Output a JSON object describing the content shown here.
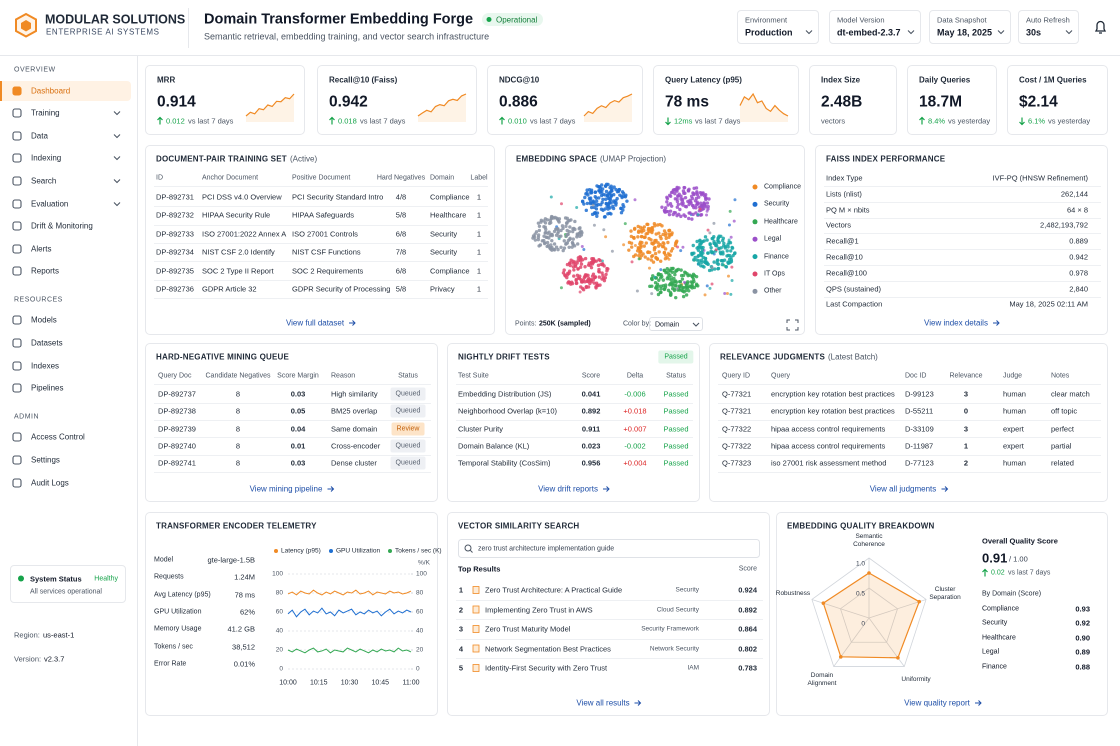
{
  "brand": {
    "name": "MODULAR SOLUTIONS",
    "tagline": "ENTERPRISE AI SYSTEMS"
  },
  "header": {
    "title": "Domain Transformer Embedding Forge",
    "status": "Operational",
    "subtitle": "Semantic retrieval, embedding training, and vector search infrastructure",
    "filters": [
      {
        "label": "Environment",
        "value": "Production"
      },
      {
        "label": "Model Version",
        "value": "dt-embed-2.3.7"
      },
      {
        "label": "Data Snapshot",
        "value": "May 18, 2025"
      },
      {
        "label": "Auto Refresh",
        "value": "30s"
      }
    ]
  },
  "sidebar": {
    "sections": [
      {
        "title": "OVERVIEW",
        "items": [
          {
            "label": "Dashboard",
            "active": true
          },
          {
            "label": "Training",
            "expandable": true
          },
          {
            "label": "Data",
            "expandable": true
          },
          {
            "label": "Indexing",
            "expandable": true
          },
          {
            "label": "Search",
            "expandable": true
          },
          {
            "label": "Evaluation",
            "expandable": true
          },
          {
            "label": "Drift & Monitoring"
          },
          {
            "label": "Alerts"
          },
          {
            "label": "Reports"
          }
        ]
      },
      {
        "title": "RESOURCES",
        "items": [
          {
            "label": "Models"
          },
          {
            "label": "Datasets"
          },
          {
            "label": "Indexes"
          },
          {
            "label": "Pipelines"
          }
        ]
      },
      {
        "title": "ADMIN",
        "items": [
          {
            "label": "Access Control"
          },
          {
            "label": "Settings"
          },
          {
            "label": "Audit Logs"
          }
        ]
      }
    ],
    "status": {
      "title": "System Status",
      "state": "Healthy",
      "message": "All services operational"
    },
    "region": {
      "label": "Region:",
      "value": "us-east-1"
    },
    "version": {
      "label": "Version:",
      "value": "v2.3.7"
    }
  },
  "kpis": [
    {
      "label": "MRR",
      "value": "0.914",
      "direction": "up",
      "delta": "0.012",
      "note": "vs last 7 days",
      "trend": [
        3,
        4,
        3.6,
        5,
        4.7,
        6,
        5.6,
        7,
        6.9,
        8,
        7.7,
        9
      ]
    },
    {
      "label": "Recall@10 (Faiss)",
      "value": "0.942",
      "direction": "up",
      "delta": "0.018",
      "note": "vs last 7 days",
      "trend": [
        3,
        3.8,
        4.5,
        4.1,
        5.5,
        6,
        5.7,
        7,
        7.4,
        7.1,
        8.3,
        8.8
      ]
    },
    {
      "label": "NDCG@10",
      "value": "0.886",
      "direction": "up",
      "delta": "0.010",
      "note": "vs last 7 days",
      "trend": [
        3,
        4.2,
        3.7,
        5.1,
        5.8,
        5.3,
        6.6,
        7.2,
        6.8,
        8,
        8.4,
        9
      ]
    },
    {
      "label": "Query Latency (p95)",
      "value": "78 ms",
      "direction": "down",
      "delta": "12ms",
      "note": "vs last 7 days",
      "trend": [
        6,
        7.5,
        7,
        8,
        6.5,
        6.8,
        5.5,
        5,
        6,
        5.2,
        4.6,
        4.2
      ]
    },
    {
      "label": "Index Size",
      "value": "2.48B",
      "note": "vectors"
    },
    {
      "label": "Daily Queries",
      "value": "18.7M",
      "direction": "up",
      "delta": "8.4%",
      "note": "vs yesterday"
    },
    {
      "label": "Cost / 1M Queries",
      "value": "$2.14",
      "direction": "down",
      "delta": "6.1%",
      "note": "vs yesterday"
    }
  ],
  "training_set": {
    "title": "DOCUMENT-PAIR TRAINING SET",
    "qualifier": "(Active)",
    "columns": [
      "ID",
      "Anchor Document",
      "Positive Document",
      "Hard Negatives",
      "Domain",
      "Label"
    ],
    "rows": [
      [
        "DP-892731",
        "PCI DSS v4.0 Overview",
        "PCI Security Standard Intro",
        "4/8",
        "Compliance",
        "1"
      ],
      [
        "DP-892732",
        "HIPAA Security Rule",
        "HIPAA Safeguards",
        "5/8",
        "Healthcare",
        "1"
      ],
      [
        "DP-892733",
        "ISO 27001:2022 Annex A",
        "ISO 27001 Controls",
        "6/8",
        "Security",
        "1"
      ],
      [
        "DP-892734",
        "NIST CSF 2.0 Identify",
        "NIST CSF Functions",
        "7/8",
        "Security",
        "1"
      ],
      [
        "DP-892735",
        "SOC 2 Type II Report",
        "SOC 2 Requirements",
        "6/8",
        "Compliance",
        "1"
      ],
      [
        "DP-892736",
        "GDPR Article 32",
        "GDPR Security of Processing",
        "5/8",
        "Privacy",
        "1"
      ]
    ],
    "link": "View full dataset"
  },
  "embedding_space": {
    "title": "EMBEDDING SPACE",
    "qualifier": "(UMAP Projection)",
    "legend": [
      {
        "name": "Compliance",
        "color": "#f08a24"
      },
      {
        "name": "Security",
        "color": "#1f6fd1"
      },
      {
        "name": "Healthcare",
        "color": "#34a853"
      },
      {
        "name": "Legal",
        "color": "#9b4fc9"
      },
      {
        "name": "Finance",
        "color": "#17a6a6"
      },
      {
        "name": "IT Ops",
        "color": "#e0456b"
      },
      {
        "name": "Other",
        "color": "#8a93a3"
      }
    ],
    "points_label": "Points:",
    "points_value": "250K (sampled)",
    "color_by_label": "Color by:",
    "color_by_value": "Domain"
  },
  "faiss": {
    "title": "FAISS INDEX PERFORMANCE",
    "rows": [
      [
        "Index Type",
        "IVF-PQ (HNSW Refinement)"
      ],
      [
        "Lists (nlist)",
        "262,144"
      ],
      [
        "PQ M × nbits",
        "64 × 8"
      ],
      [
        "Vectors",
        "2,482,193,792"
      ],
      [
        "Recall@1",
        "0.889"
      ],
      [
        "Recall@10",
        "0.942"
      ],
      [
        "Recall@100",
        "0.978"
      ],
      [
        "QPS (sustained)",
        "2,840"
      ],
      [
        "Last Compaction",
        "May 18, 2025 02:11 AM"
      ]
    ],
    "link": "View index details"
  },
  "mining": {
    "title": "HARD-NEGATIVE MINING QUEUE",
    "columns": [
      "Query Doc",
      "Candidate Negatives",
      "Score Margin",
      "Reason",
      "Status"
    ],
    "rows": [
      [
        "DP-892737",
        "8",
        "0.03",
        "High similarity",
        "Queued"
      ],
      [
        "DP-892738",
        "8",
        "0.05",
        "BM25 overlap",
        "Queued"
      ],
      [
        "DP-892739",
        "8",
        "0.04",
        "Same domain",
        "Review"
      ],
      [
        "DP-892740",
        "8",
        "0.01",
        "Cross-encoder",
        "Queued"
      ],
      [
        "DP-892741",
        "8",
        "0.03",
        "Dense cluster",
        "Queued"
      ]
    ],
    "status_colors": {
      "Queued": [
        "#eef0f4",
        "#5b6472"
      ],
      "Review": [
        "#fde4c8",
        "#c2610c"
      ]
    },
    "link": "View mining pipeline"
  },
  "drift": {
    "title": "NIGHTLY DRIFT TESTS",
    "badge": "Passed",
    "columns": [
      "Test Suite",
      "Score",
      "Delta",
      "Status"
    ],
    "rows": [
      [
        "Embedding Distribution (JS)",
        "0.041",
        "-0.006",
        "Passed"
      ],
      [
        "Neighborhood Overlap (k=10)",
        "0.892",
        "+0.018",
        "Passed"
      ],
      [
        "Cluster Purity",
        "0.911",
        "+0.007",
        "Passed"
      ],
      [
        "Domain Balance (KL)",
        "0.023",
        "-0.002",
        "Passed"
      ],
      [
        "Temporal Stability (CosSim)",
        "0.956",
        "+0.004",
        "Passed"
      ]
    ],
    "link": "View drift reports"
  },
  "judgments": {
    "title": "RELEVANCE JUDGMENTS",
    "qualifier": "(Latest Batch)",
    "columns": [
      "Query ID",
      "Query",
      "Doc ID",
      "Relevance",
      "Judge",
      "Notes"
    ],
    "rows": [
      [
        "Q-77321",
        "encryption key rotation best practices",
        "D-99123",
        "3",
        "human",
        "clear match"
      ],
      [
        "Q-77321",
        "encryption key rotation best practices",
        "D-55211",
        "0",
        "human",
        "off topic"
      ],
      [
        "Q-77322",
        "hipaa access control requirements",
        "D-33109",
        "3",
        "expert",
        "perfect"
      ],
      [
        "Q-77322",
        "hipaa access control requirements",
        "D-11987",
        "1",
        "expert",
        "partial"
      ],
      [
        "Q-77323",
        "iso 27001 risk assessment method",
        "D-77123",
        "2",
        "human",
        "related"
      ]
    ],
    "link": "View all judgments"
  },
  "telemetry": {
    "title": "TRANSFORMER ENCODER TELEMETRY",
    "stats": [
      [
        "Model",
        "gte-large-1.5B"
      ],
      [
        "Requests",
        "1.24M"
      ],
      [
        "Avg Latency (p95)",
        "78 ms"
      ],
      [
        "GPU Utilization",
        "62%"
      ],
      [
        "Memory Usage",
        "41.2 GB"
      ],
      [
        "Tokens / sec",
        "38,512"
      ],
      [
        "Error Rate",
        "0.01%"
      ]
    ],
    "chart": {
      "type": "line",
      "ylim": [
        0,
        100
      ],
      "yticks": [
        100,
        80,
        60,
        40,
        20,
        0
      ],
      "y2lim": [
        0,
        100
      ],
      "y2ticks": [
        100,
        80,
        60,
        40,
        20,
        0
      ],
      "y2label": "%/K",
      "xticks": [
        "10:00",
        "10:15",
        "10:30",
        "10:45",
        "11:00"
      ],
      "series": [
        {
          "name": "Latency (p95)",
          "color": "#f08a24",
          "values": [
            79,
            81,
            78,
            82,
            80,
            79,
            83,
            80,
            78,
            81,
            79,
            82,
            80,
            78,
            81,
            80,
            83,
            79,
            80,
            82,
            78,
            81,
            80,
            79,
            82,
            80,
            81,
            79,
            80,
            82
          ]
        },
        {
          "name": "GPU Utilization",
          "color": "#1f6fd1",
          "axis": "y2",
          "values": [
            58,
            62,
            55,
            60,
            63,
            57,
            61,
            59,
            64,
            58,
            60,
            56,
            62,
            59,
            61,
            63,
            57,
            60,
            58,
            62,
            59,
            61,
            56,
            60,
            63,
            58,
            61,
            59,
            62,
            60
          ]
        },
        {
          "name": "Tokens / sec (K)",
          "color": "#34a853",
          "axis": "y2",
          "values": [
            20,
            18,
            21,
            19,
            17,
            20,
            22,
            18,
            19,
            21,
            17,
            20,
            19,
            18,
            22,
            20,
            18,
            21,
            19,
            17,
            20,
            18,
            21,
            19,
            20,
            18,
            22,
            19,
            20,
            18
          ]
        }
      ]
    }
  },
  "search": {
    "title": "VECTOR SIMILARITY SEARCH",
    "query": "zero trust architecture implementation guide",
    "results_label": "Top Results",
    "score_label": "Score",
    "results": [
      {
        "rank": "1",
        "title": "Zero Trust Architecture: A Practical Guide",
        "category": "Security",
        "score": "0.924"
      },
      {
        "rank": "2",
        "title": "Implementing Zero Trust in AWS",
        "category": "Cloud Security",
        "score": "0.892"
      },
      {
        "rank": "3",
        "title": "Zero Trust Maturity Model",
        "category": "Security Framework",
        "score": "0.864"
      },
      {
        "rank": "4",
        "title": "Network Segmentation Best Practices",
        "category": "Network Security",
        "score": "0.802"
      },
      {
        "rank": "5",
        "title": "Identity-First Security with Zero Trust",
        "category": "IAM",
        "score": "0.783"
      }
    ],
    "link": "View all results"
  },
  "quality": {
    "title": "EMBEDDING QUALITY BREAKDOWN",
    "radar": {
      "type": "radar",
      "axes": [
        "Semantic Coherence",
        "Cluster Separation",
        "Uniformity",
        "Domain Alignment",
        "Robustness"
      ],
      "values": [
        0.75,
        0.88,
        0.82,
        0.8,
        0.8
      ],
      "color": "#f08a24",
      "rlim": [
        0,
        1
      ],
      "rticks": [
        {
          "value": 1,
          "label": "1.0"
        },
        {
          "value": 0.5,
          "label": "0.5"
        },
        0
      ]
    },
    "overall_label": "Overall Quality Score",
    "overall_value": "0.91",
    "overall_max": "/ 1.00",
    "direction": "up",
    "delta": "0.02",
    "note": "vs last 7 days",
    "domains_label": "By Domain (Score)",
    "domains": [
      [
        "Compliance",
        "0.93"
      ],
      [
        "Security",
        "0.92"
      ],
      [
        "Healthcare",
        "0.90"
      ],
      [
        "Legal",
        "0.89"
      ],
      [
        "Finance",
        "0.88"
      ]
    ],
    "link": "View quality report"
  }
}
